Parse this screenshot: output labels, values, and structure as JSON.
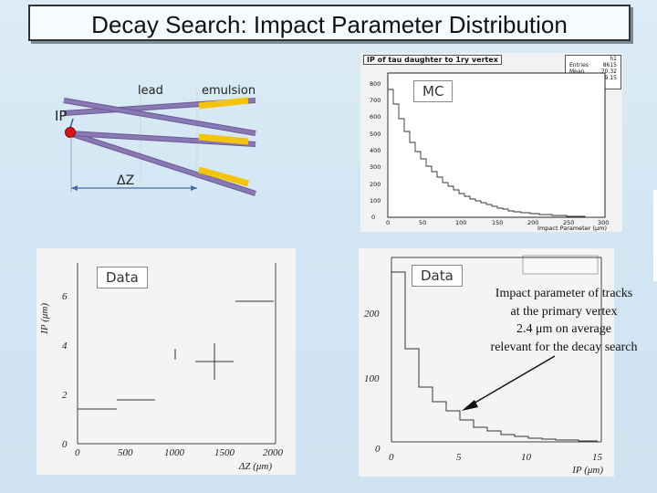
{
  "title": "Decay Search: Impact Parameter Distribution",
  "diagram": {
    "label_lead": "lead",
    "label_emulsion": "emulsion",
    "label_ip": "IP",
    "label_dz": "ΔZ"
  },
  "mc_panel": {
    "title": "IP of tau daughter to 1ry vertex",
    "tag": "MC",
    "stats_name": "h1",
    "stats": [
      {
        "key": "Entries",
        "value": "8615"
      },
      {
        "key": "Mean",
        "value": "70.32"
      },
      {
        "key": "RMS",
        "value": "69.15"
      }
    ],
    "xlabel": "Impact Parameter (μm)",
    "x_ticks": [
      "0",
      "50",
      "100",
      "150",
      "200",
      "250",
      "300"
    ],
    "y_ticks": [
      "0",
      "100",
      "200",
      "300",
      "400",
      "500",
      "600",
      "700",
      "800"
    ]
  },
  "data_panel_left": {
    "tag": "Data",
    "ylabel": "IP (μm)",
    "xlabel": "ΔZ (μm)",
    "x_ticks": [
      "0",
      "500",
      "1000",
      "1500",
      "2000"
    ],
    "y_ticks": [
      "0",
      "2",
      "4",
      "6"
    ]
  },
  "data_panel_right": {
    "tag": "Data",
    "xlabel": "IP (μm)",
    "x_ticks": [
      "0",
      "5",
      "10",
      "15"
    ],
    "y_ticks": [
      "0",
      "100",
      "200"
    ]
  },
  "annotation": {
    "line1": "Impact parameter of tracks",
    "line2": "at the primary vertex",
    "line3": "2.4 μm on average",
    "line4": "relevant for the decay search"
  },
  "colors": {
    "track": "#8a78b4",
    "emulsion": "#f4c40a",
    "vertex": "#d8141a",
    "background": "#d6e8f4"
  }
}
